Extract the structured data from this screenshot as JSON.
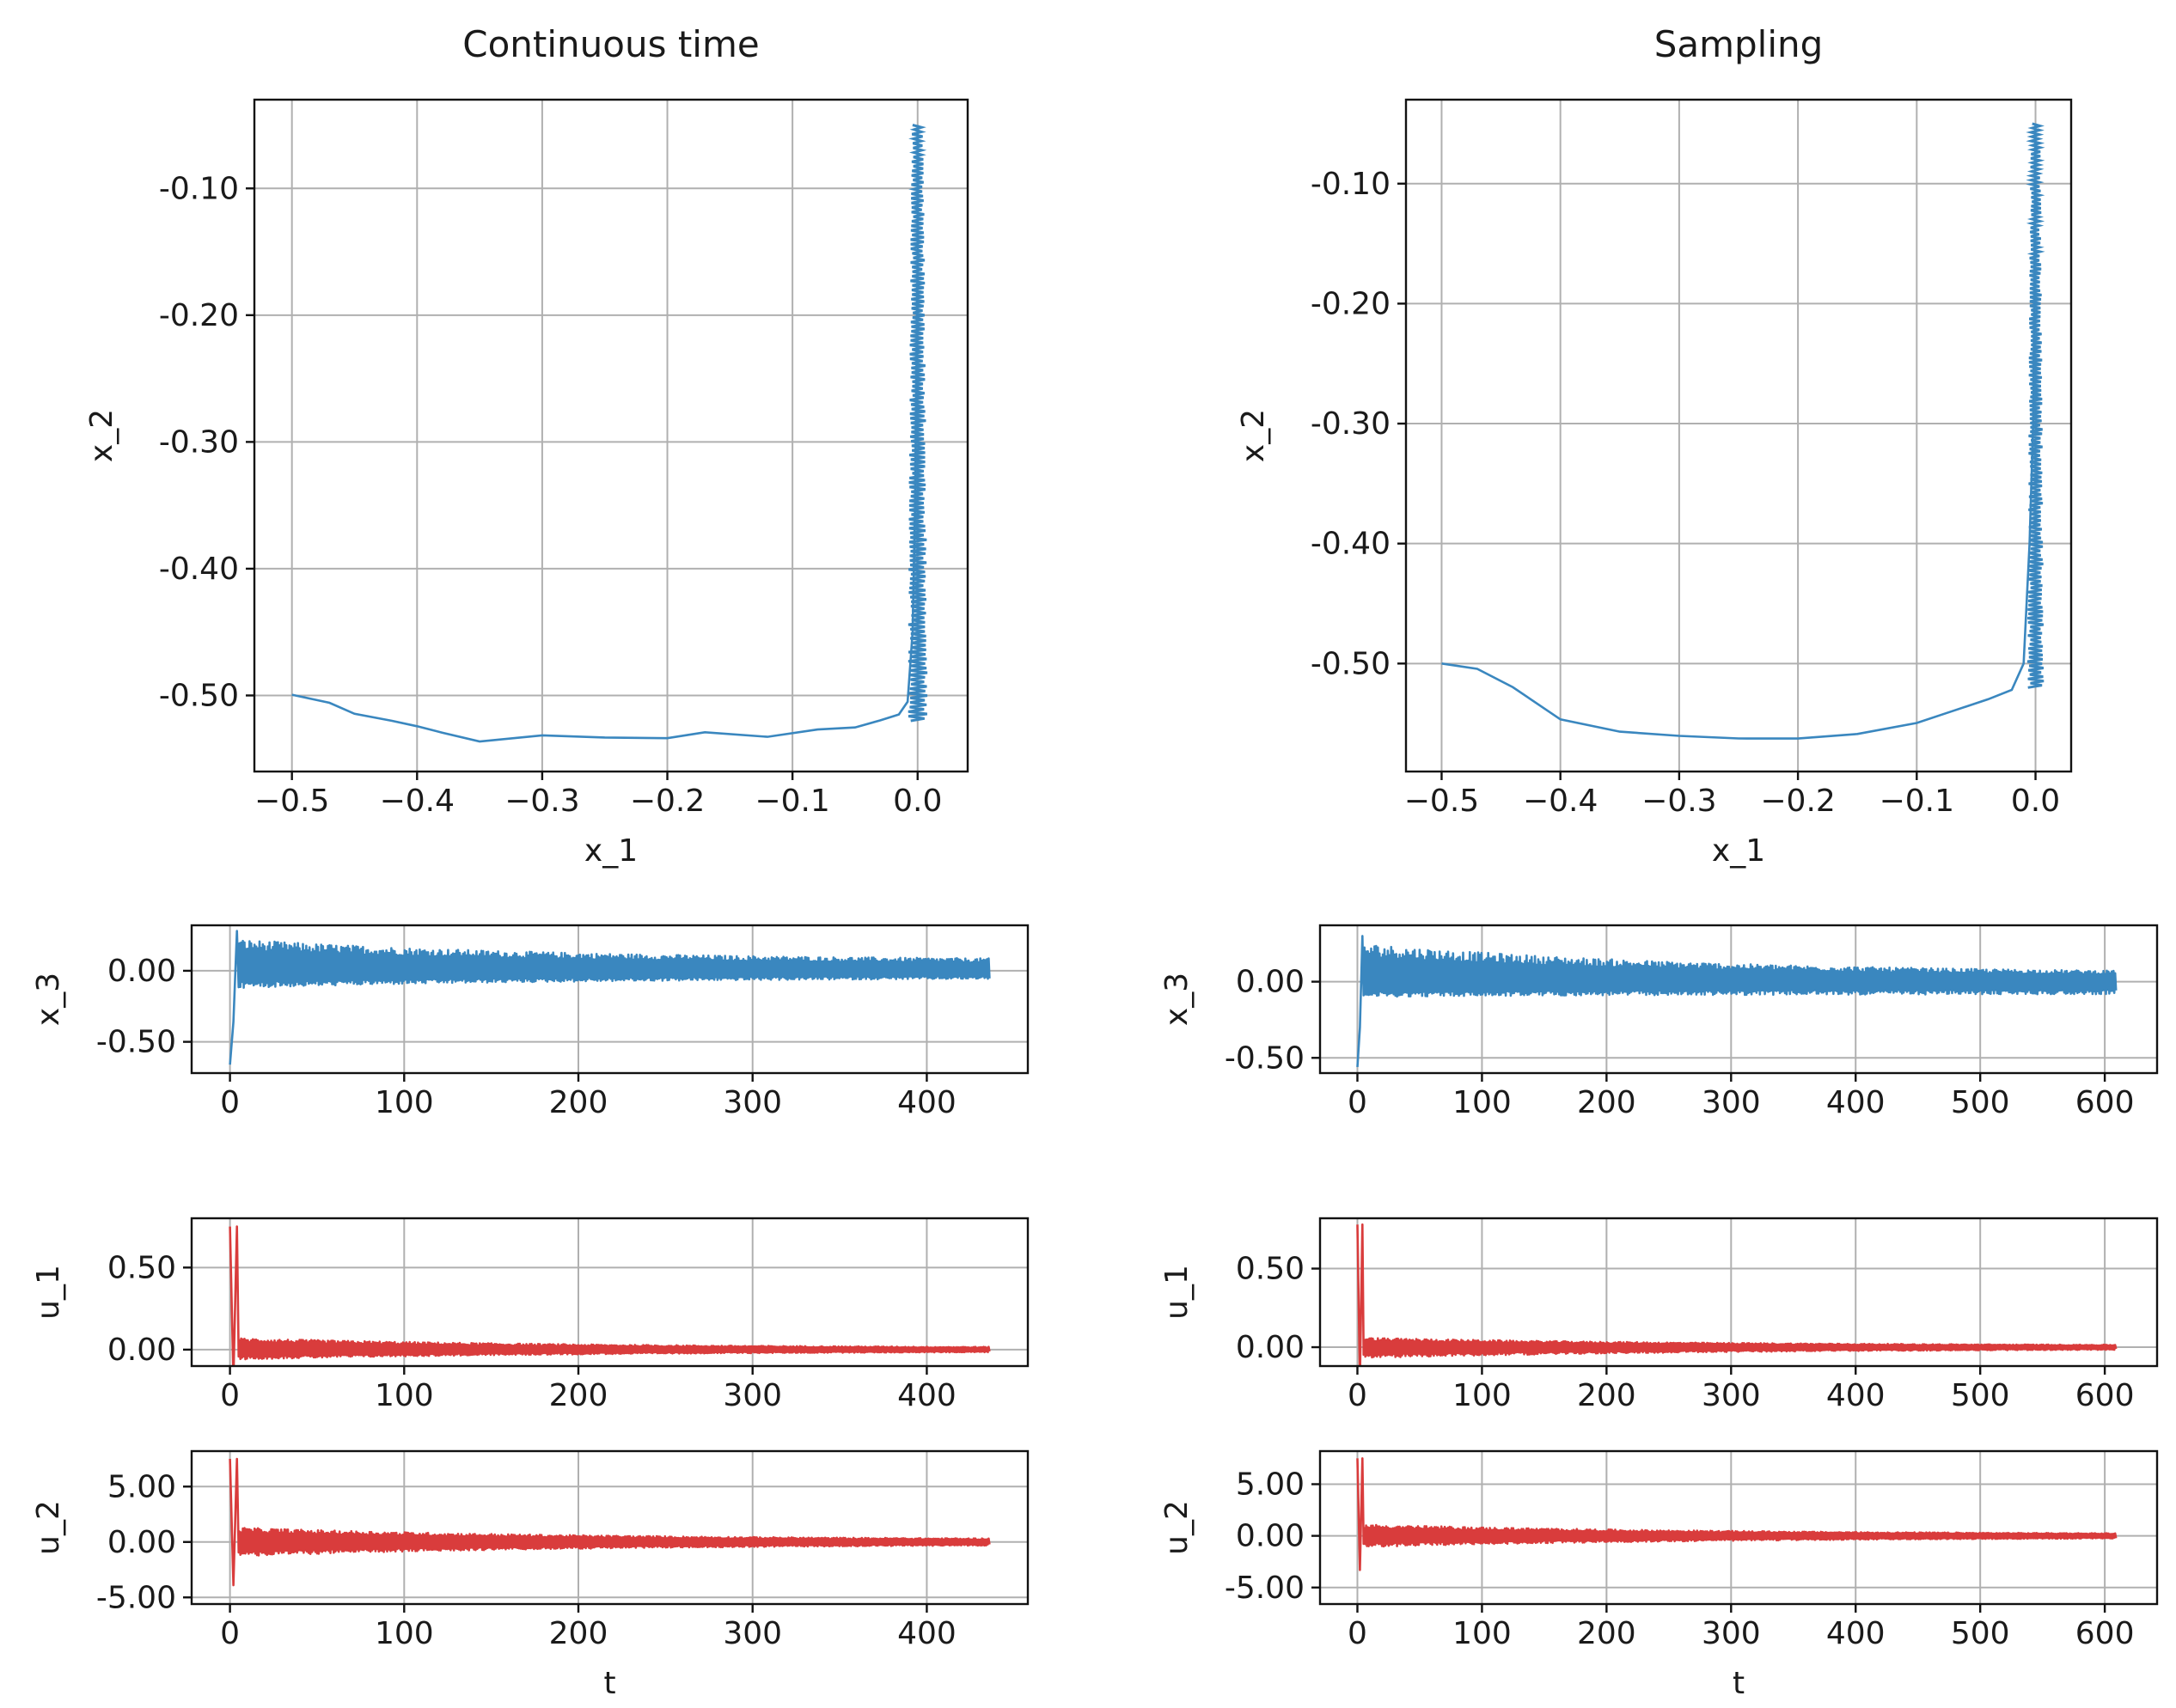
{
  "colors": {
    "state": "#3a87bf",
    "input": "#d93c3c",
    "grid": "#b0b0b0",
    "frame": "#111111"
  },
  "chart_data": [
    {
      "id": "ct-phase",
      "type": "line",
      "title": "Continuous time",
      "xlabel": "x_1",
      "ylabel": "x_2",
      "xlim": [
        -0.53,
        0.04
      ],
      "ylim": [
        -0.56,
        -0.03
      ],
      "xticks": [
        -0.5,
        -0.4,
        -0.3,
        -0.2,
        -0.1,
        0.0
      ],
      "xtick_labels": [
        "−0.5",
        "−0.4",
        "−0.3",
        "−0.2",
        "−0.1",
        "0.0"
      ],
      "yticks": [
        -0.1,
        -0.2,
        -0.3,
        -0.4,
        -0.5
      ],
      "ytick_labels": [
        "-0.10",
        "-0.20",
        "-0.30",
        "-0.40",
        "-0.50"
      ],
      "grid": true,
      "color": "state",
      "series": [
        {
          "name": "trajectory",
          "x": [
            -0.5,
            -0.47,
            -0.45,
            -0.42,
            -0.4,
            -0.38,
            -0.35,
            -0.3,
            -0.25,
            -0.2,
            -0.17,
            -0.12,
            -0.08,
            -0.05,
            -0.03,
            -0.015,
            -0.008,
            -0.004,
            -0.002,
            -0.001,
            0.0,
            0.0
          ],
          "y": [
            -0.5,
            -0.505,
            -0.515,
            -0.522,
            -0.525,
            -0.53,
            -0.535,
            -0.533,
            -0.534,
            -0.535,
            -0.53,
            -0.532,
            -0.528,
            -0.524,
            -0.52,
            -0.515,
            -0.505,
            -0.45,
            -0.35,
            -0.25,
            -0.15,
            -0.05
          ]
        }
      ],
      "oscillation_band": {
        "x_center": 0.0,
        "half_width": 0.008,
        "y_from": -0.52,
        "y_to": -0.05
      }
    },
    {
      "id": "samp-phase",
      "type": "line",
      "title": "Sampling",
      "xlabel": "x_1",
      "ylabel": "x_2",
      "xlim": [
        -0.53,
        0.03
      ],
      "ylim": [
        -0.59,
        -0.03
      ],
      "xticks": [
        -0.5,
        -0.4,
        -0.3,
        -0.2,
        -0.1,
        0.0
      ],
      "xtick_labels": [
        "−0.5",
        "−0.4",
        "−0.3",
        "−0.2",
        "−0.1",
        "0.0"
      ],
      "yticks": [
        -0.1,
        -0.2,
        -0.3,
        -0.4,
        -0.5
      ],
      "ytick_labels": [
        "-0.10",
        "-0.20",
        "-0.30",
        "-0.40",
        "-0.50"
      ],
      "grid": true,
      "color": "state",
      "series": [
        {
          "name": "trajectory",
          "x": [
            -0.5,
            -0.47,
            -0.44,
            -0.4,
            -0.35,
            -0.3,
            -0.25,
            -0.2,
            -0.15,
            -0.1,
            -0.07,
            -0.04,
            -0.02,
            -0.01,
            -0.005,
            -0.002,
            -0.001,
            0.0
          ],
          "y": [
            -0.5,
            -0.505,
            -0.52,
            -0.545,
            -0.558,
            -0.56,
            -0.563,
            -0.563,
            -0.558,
            -0.548,
            -0.54,
            -0.53,
            -0.522,
            -0.5,
            -0.4,
            -0.3,
            -0.18,
            -0.05
          ]
        }
      ],
      "oscillation_band": {
        "x_center": 0.0,
        "half_width": 0.007,
        "y_from": -0.52,
        "y_to": -0.05
      }
    },
    {
      "id": "ct-x3",
      "type": "line",
      "title": "",
      "xlabel": "",
      "ylabel": "x_3",
      "xlim": [
        -22,
        458
      ],
      "ylim": [
        -0.72,
        0.32
      ],
      "xticks": [
        0,
        100,
        200,
        300,
        400
      ],
      "xtick_labels": [
        "0",
        "100",
        "200",
        "300",
        "400"
      ],
      "yticks": [
        0.0,
        -0.5
      ],
      "ytick_labels": [
        "0.00",
        "-0.50"
      ],
      "grid": true,
      "color": "state",
      "series": [
        {
          "name": "x_3",
          "t_end": 436,
          "start": -0.66,
          "peak": 0.28,
          "upper_start": 0.22,
          "upper_end": 0.07,
          "lower_start": -0.12,
          "lower_end": -0.05
        }
      ]
    },
    {
      "id": "samp-x3",
      "type": "line",
      "title": "",
      "xlabel": "",
      "ylabel": "x_3",
      "xlim": [
        -30,
        642
      ],
      "ylim": [
        -0.6,
        0.37
      ],
      "xticks": [
        0,
        100,
        200,
        300,
        400,
        500,
        600
      ],
      "xtick_labels": [
        "0",
        "100",
        "200",
        "300",
        "400",
        "500",
        "600"
      ],
      "yticks": [
        0.0,
        -0.5
      ],
      "ytick_labels": [
        "0.00",
        "-0.50"
      ],
      "grid": true,
      "color": "state",
      "series": [
        {
          "name": "x_3",
          "t_end": 609,
          "start": -0.56,
          "peak": 0.3,
          "upper_start": 0.25,
          "upper_end": 0.05,
          "lower_start": -0.1,
          "lower_end": -0.08
        }
      ]
    },
    {
      "id": "ct-u1",
      "type": "line",
      "title": "",
      "xlabel": "",
      "ylabel": "u_1",
      "xlim": [
        -22,
        458
      ],
      "ylim": [
        -0.1,
        0.8
      ],
      "xticks": [
        0,
        100,
        200,
        300,
        400
      ],
      "xtick_labels": [
        "0",
        "100",
        "200",
        "300",
        "400"
      ],
      "yticks": [
        0.5,
        0.0
      ],
      "ytick_labels": [
        "0.50",
        "0.00"
      ],
      "grid": true,
      "color": "input",
      "series": [
        {
          "name": "u_1",
          "t_end": 436,
          "start": 0.75,
          "peak": 0.75,
          "upper_start": 0.07,
          "upper_end": 0.01,
          "lower_start": -0.06,
          "lower_end": -0.01
        }
      ]
    },
    {
      "id": "samp-u1",
      "type": "line",
      "title": "",
      "xlabel": "",
      "ylabel": "u_1",
      "xlim": [
        -30,
        642
      ],
      "ylim": [
        -0.12,
        0.82
      ],
      "xticks": [
        0,
        100,
        200,
        300,
        400,
        500,
        600
      ],
      "xtick_labels": [
        "0",
        "100",
        "200",
        "300",
        "400",
        "500",
        "600"
      ],
      "yticks": [
        0.5,
        0.0
      ],
      "ytick_labels": [
        "0.50",
        "0.00"
      ],
      "grid": true,
      "color": "input",
      "series": [
        {
          "name": "u_1",
          "t_end": 609,
          "start": 0.78,
          "peak": 0.78,
          "upper_start": 0.06,
          "upper_end": 0.01,
          "lower_start": -0.07,
          "lower_end": -0.01
        }
      ]
    },
    {
      "id": "ct-u2",
      "type": "line",
      "title": "",
      "xlabel": "t",
      "ylabel": "u_2",
      "xlim": [
        -22,
        458
      ],
      "ylim": [
        -5.6,
        8.2
      ],
      "xticks": [
        0,
        100,
        200,
        300,
        400
      ],
      "xtick_labels": [
        "0",
        "100",
        "200",
        "300",
        "400"
      ],
      "yticks": [
        5.0,
        0.0,
        -5.0
      ],
      "ytick_labels": [
        "5.00",
        "0.00",
        "-5.00"
      ],
      "grid": true,
      "color": "input",
      "series": [
        {
          "name": "u_2",
          "t_end": 436,
          "start": 7.5,
          "peak": 7.5,
          "upper_start": 1.3,
          "upper_end": 0.2,
          "lower_start": -1.3,
          "lower_end": -0.2
        }
      ]
    },
    {
      "id": "samp-u2",
      "type": "line",
      "title": "",
      "xlabel": "t",
      "ylabel": "u_2",
      "xlim": [
        -30,
        642
      ],
      "ylim": [
        -6.6,
        8.2
      ],
      "xticks": [
        0,
        100,
        200,
        300,
        400,
        500,
        600
      ],
      "xtick_labels": [
        "0",
        "100",
        "200",
        "300",
        "400",
        "500",
        "600"
      ],
      "yticks": [
        5.0,
        0.0,
        -5.0
      ],
      "ytick_labels": [
        "5.00",
        "0.00",
        "-5.00"
      ],
      "grid": true,
      "color": "input",
      "series": [
        {
          "name": "u_2",
          "t_end": 609,
          "start": 7.5,
          "peak": 7.5,
          "upper_start": 1.1,
          "upper_end": 0.15,
          "lower_start": -1.1,
          "lower_end": -0.15
        }
      ]
    }
  ]
}
